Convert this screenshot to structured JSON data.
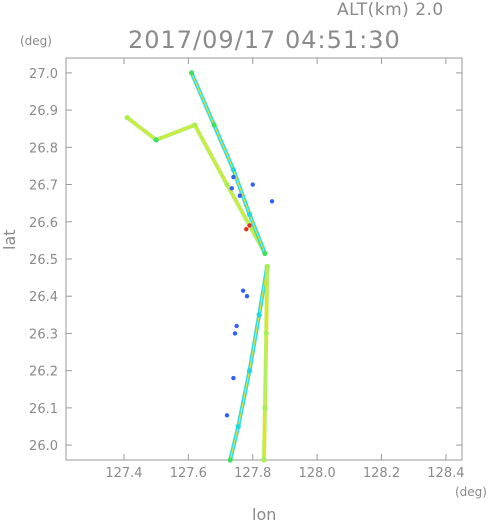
{
  "header": {
    "alt_label": "ALT(km) 2.0",
    "title": "2017/09/17 04:51:30"
  },
  "chart_data": {
    "type": "scatter",
    "title": "2017/09/17 04:51:30",
    "subtitle": "ALT(km) 2.0",
    "xlabel": "lon",
    "ylabel": "lat",
    "xunit": "(deg)",
    "yunit": "(deg)",
    "xlim": [
      127.22,
      128.45
    ],
    "ylim": [
      25.96,
      27.04
    ],
    "xticks": [
      127.4,
      127.6,
      127.8,
      128.0,
      128.2,
      128.4
    ],
    "xtick_labels": [
      "127.4",
      "127.6",
      "127.8",
      "128.0",
      "128.2",
      "128.4"
    ],
    "yticks": [
      26.0,
      26.1,
      26.2,
      26.3,
      26.4,
      26.5,
      26.6,
      26.7,
      26.8,
      26.9,
      27.0
    ],
    "ytick_labels": [
      "26.0",
      "26.1",
      "26.2",
      "26.3",
      "26.4",
      "26.5",
      "26.6",
      "26.7",
      "26.8",
      "26.9",
      "27.0"
    ],
    "grid": false,
    "colors": {
      "blue": "#3060ff",
      "cyan": "#20d8e0",
      "green": "#40e060",
      "lime": "#a8f050",
      "yellow": "#f0e020",
      "red": "#e03020"
    },
    "series": [
      {
        "points": [
          {
            "lon": 127.838,
            "lat": 26.515,
            "color": "lime"
          },
          {
            "lon": 127.72,
            "lat": 26.7,
            "color": "lime"
          },
          {
            "lon": 127.62,
            "lat": 26.86,
            "color": "lime"
          },
          {
            "lon": 127.5,
            "lat": 26.82,
            "color": "green"
          },
          {
            "lon": 127.41,
            "lat": 26.88,
            "color": "lime"
          }
        ]
      },
      {
        "points": [
          {
            "lon": 127.838,
            "lat": 26.515,
            "color": "green"
          },
          {
            "lon": 127.79,
            "lat": 26.62,
            "color": "cyan"
          },
          {
            "lon": 127.74,
            "lat": 26.74,
            "color": "cyan"
          },
          {
            "lon": 127.68,
            "lat": 26.86,
            "color": "green"
          },
          {
            "lon": 127.61,
            "lat": 27.0,
            "color": "green"
          }
        ]
      },
      {
        "points": [
          {
            "lon": 127.845,
            "lat": 26.48,
            "color": "cyan"
          },
          {
            "lon": 127.82,
            "lat": 26.35,
            "color": "cyan"
          },
          {
            "lon": 127.79,
            "lat": 26.2,
            "color": "cyan"
          },
          {
            "lon": 127.755,
            "lat": 26.05,
            "color": "cyan"
          },
          {
            "lon": 127.73,
            "lat": 25.96,
            "color": "green"
          }
        ]
      },
      {
        "points": [
          {
            "lon": 127.845,
            "lat": 26.48,
            "color": "lime"
          },
          {
            "lon": 127.842,
            "lat": 26.3,
            "color": "lime"
          },
          {
            "lon": 127.838,
            "lat": 26.1,
            "color": "lime"
          },
          {
            "lon": 127.835,
            "lat": 25.96,
            "color": "lime"
          }
        ]
      },
      {
        "points": [
          {
            "lon": 127.74,
            "lat": 26.72,
            "color": "blue"
          },
          {
            "lon": 127.735,
            "lat": 26.69,
            "color": "blue"
          },
          {
            "lon": 127.76,
            "lat": 26.67,
            "color": "blue"
          },
          {
            "lon": 127.79,
            "lat": 26.59,
            "color": "red"
          },
          {
            "lon": 127.78,
            "lat": 26.58,
            "color": "red"
          },
          {
            "lon": 127.75,
            "lat": 26.32,
            "color": "blue"
          },
          {
            "lon": 127.745,
            "lat": 26.3,
            "color": "blue"
          },
          {
            "lon": 127.74,
            "lat": 26.18,
            "color": "blue"
          },
          {
            "lon": 127.72,
            "lat": 26.08,
            "color": "blue"
          },
          {
            "lon": 127.8,
            "lat": 26.7,
            "color": "blue"
          },
          {
            "lon": 127.77,
            "lat": 26.415,
            "color": "blue"
          },
          {
            "lon": 127.782,
            "lat": 26.4,
            "color": "blue"
          },
          {
            "lon": 127.86,
            "lat": 26.655,
            "color": "blue"
          }
        ]
      }
    ]
  }
}
